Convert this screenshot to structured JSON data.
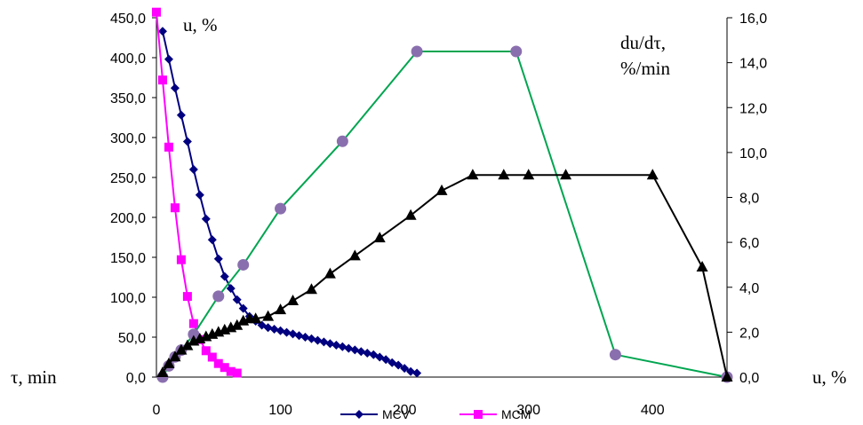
{
  "chart_data": {
    "type": "line",
    "y_left_label": "u, %",
    "y_right_label_line1": "du/dτ,",
    "y_right_label_line2": "%/min",
    "x_left_label": "τ, min",
    "x_right_label": "u, %",
    "ylim_left": [
      0,
      450
    ],
    "ylim_right": [
      0,
      16
    ],
    "xlim": [
      0,
      460
    ],
    "y_left_ticks": [
      "0,0",
      "50,0",
      "100,0",
      "150,0",
      "200,0",
      "250,0",
      "300,0",
      "350,0",
      "400,0",
      "450,0"
    ],
    "y_right_ticks": [
      "0,0",
      "2,0",
      "4,0",
      "6,0",
      "8,0",
      "10,0",
      "12,0",
      "14,0",
      "16,0"
    ],
    "x_ticks": [
      "0",
      "100",
      "200",
      "300",
      "400"
    ],
    "legend": [
      {
        "name": "MCV",
        "color": "#000080",
        "marker": "diamond"
      },
      {
        "name": "MCM",
        "color": "#ff00ff",
        "marker": "square"
      }
    ],
    "series": [
      {
        "name": "MCV",
        "axis": "left",
        "color": "#000080",
        "marker": "diamond",
        "x": [
          5,
          10,
          15,
          20,
          25,
          30,
          35,
          40,
          45,
          50,
          55,
          60,
          65,
          70,
          75,
          80,
          85,
          90,
          95,
          100,
          105,
          110,
          115,
          120,
          125,
          130,
          135,
          140,
          145,
          150,
          155,
          160,
          165,
          170,
          175,
          180,
          185,
          190,
          195,
          200,
          205,
          210
        ],
        "y": [
          433,
          398,
          362,
          328,
          295,
          260,
          228,
          198,
          172,
          148,
          126,
          111,
          97,
          86,
          76,
          70,
          65,
          62,
          60,
          58,
          56,
          54,
          52,
          50,
          48,
          46,
          44,
          42,
          40,
          38,
          36,
          34,
          32,
          30,
          28,
          25,
          22,
          18,
          15,
          11,
          7,
          5
        ]
      },
      {
        "name": "MCM",
        "axis": "left",
        "color": "#ff00ff",
        "marker": "square",
        "x": [
          0,
          5,
          10,
          15,
          20,
          25,
          30,
          35,
          40,
          45,
          50,
          55,
          60,
          65
        ],
        "y": [
          457,
          372,
          288,
          212,
          147,
          101,
          67,
          47,
          33,
          25,
          17,
          12,
          7,
          5
        ]
      },
      {
        "name": "",
        "axis": "right",
        "color": "#00a550",
        "marker": "circle",
        "x": [
          5,
          10,
          15,
          20,
          30,
          50,
          70,
          100,
          150,
          210,
          290,
          370,
          460
        ],
        "y": [
          0.0,
          0.5,
          0.9,
          1.2,
          1.9,
          3.6,
          5.0,
          7.5,
          10.5,
          14.5,
          14.5,
          1.0,
          0.0
        ]
      },
      {
        "name": "",
        "axis": "right",
        "color": "#000000",
        "marker": "triangle",
        "x": [
          5,
          10,
          15,
          20,
          25,
          30,
          35,
          40,
          45,
          50,
          55,
          60,
          65,
          70,
          75,
          80,
          90,
          100,
          110,
          125,
          140,
          160,
          180,
          205,
          230,
          255,
          280,
          300,
          330,
          400,
          440,
          460
        ],
        "y": [
          0.2,
          0.6,
          0.9,
          1.2,
          1.4,
          1.6,
          1.7,
          1.8,
          1.9,
          2.0,
          2.1,
          2.2,
          2.3,
          2.5,
          2.6,
          2.6,
          2.7,
          3.0,
          3.4,
          3.9,
          4.6,
          5.4,
          6.2,
          7.2,
          8.3,
          9.0,
          9.0,
          9.0,
          9.0,
          9.0,
          4.9,
          0.0
        ]
      }
    ]
  }
}
